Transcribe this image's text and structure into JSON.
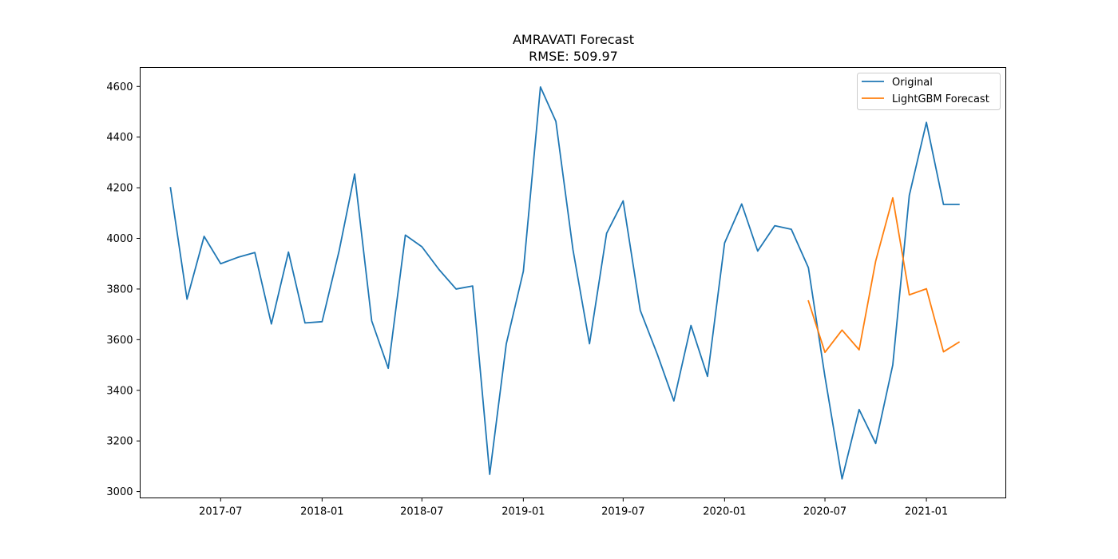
{
  "chart_data": {
    "type": "line",
    "title": "AMRAVATI Forecast",
    "subtitle": "RMSE: 509.97",
    "xlabel": "",
    "ylabel": "",
    "x_axis_type": "date",
    "xlim": [
      "2017-02-05",
      "2021-05-25"
    ],
    "ylim": [
      2975,
      4675
    ],
    "x_tick_labels": [
      "2017-07",
      "2018-01",
      "2018-07",
      "2019-01",
      "2019-07",
      "2020-01",
      "2020-07",
      "2021-01"
    ],
    "y_tick_labels": [
      "3000",
      "3200",
      "3400",
      "3600",
      "3800",
      "4000",
      "4200",
      "4400",
      "4600"
    ],
    "grid": false,
    "legend": "top-right",
    "series": [
      {
        "name": "Original",
        "color": "#1f77b4",
        "points": [
          [
            "2017-04-01",
            4200
          ],
          [
            "2017-05-01",
            3760
          ],
          [
            "2017-06-01",
            4008
          ],
          [
            "2017-07-01",
            3900
          ],
          [
            "2017-08-01",
            3925
          ],
          [
            "2017-09-01",
            3944
          ],
          [
            "2017-10-01",
            3662
          ],
          [
            "2017-11-01",
            3946
          ],
          [
            "2017-12-01",
            3666
          ],
          [
            "2018-01-01",
            3671
          ],
          [
            "2018-02-01",
            3952
          ],
          [
            "2018-03-01",
            4254
          ],
          [
            "2018-04-01",
            3674
          ],
          [
            "2018-05-01",
            3487
          ],
          [
            "2018-06-01",
            4013
          ],
          [
            "2018-07-01",
            3967
          ],
          [
            "2018-08-01",
            3877
          ],
          [
            "2018-09-01",
            3800
          ],
          [
            "2018-10-01",
            3812
          ],
          [
            "2018-11-01",
            3068
          ],
          [
            "2018-12-01",
            3583
          ],
          [
            "2019-01-01",
            3870
          ],
          [
            "2019-02-01",
            4598
          ],
          [
            "2019-03-01",
            4462
          ],
          [
            "2019-04-01",
            3955
          ],
          [
            "2019-05-01",
            3584
          ],
          [
            "2019-06-01",
            4020
          ],
          [
            "2019-07-01",
            4148
          ],
          [
            "2019-08-01",
            3716
          ],
          [
            "2019-09-01",
            3542
          ],
          [
            "2019-10-01",
            3358
          ],
          [
            "2019-11-01",
            3656
          ],
          [
            "2019-12-01",
            3455
          ],
          [
            "2020-01-01",
            3982
          ],
          [
            "2020-02-01",
            4136
          ],
          [
            "2020-03-01",
            3950
          ],
          [
            "2020-04-01",
            4050
          ],
          [
            "2020-05-01",
            4036
          ],
          [
            "2020-06-01",
            3884
          ],
          [
            "2020-07-01",
            3454
          ],
          [
            "2020-08-01",
            3050
          ],
          [
            "2020-09-01",
            3324
          ],
          [
            "2020-10-01",
            3190
          ],
          [
            "2020-11-01",
            3500
          ],
          [
            "2020-12-01",
            4170
          ],
          [
            "2021-01-01",
            4458
          ],
          [
            "2021-02-01",
            4134
          ],
          [
            "2021-03-01",
            4134
          ]
        ]
      },
      {
        "name": "LightGBM Forecast",
        "color": "#ff7f0e",
        "points": [
          [
            "2020-06-01",
            3753
          ],
          [
            "2020-07-01",
            3550
          ],
          [
            "2020-08-01",
            3638
          ],
          [
            "2020-09-01",
            3560
          ],
          [
            "2020-10-01",
            3910
          ],
          [
            "2020-11-01",
            4160
          ],
          [
            "2020-12-01",
            3777
          ],
          [
            "2021-01-01",
            3801
          ],
          [
            "2021-02-01",
            3552
          ],
          [
            "2021-03-01",
            3590
          ]
        ]
      }
    ]
  }
}
